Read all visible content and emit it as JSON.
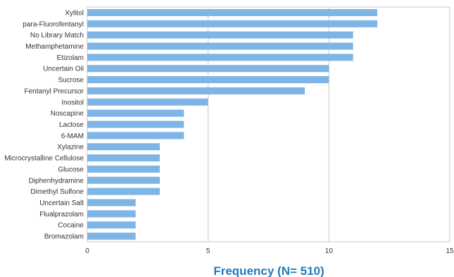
{
  "chart_data": {
    "type": "bar",
    "orientation": "horizontal",
    "title": "",
    "xlabel": "Frequency (N= 510)",
    "ylabel": "",
    "xlim": [
      0,
      15
    ],
    "xticks": [
      "0",
      "5",
      "10",
      "15"
    ],
    "grid": "vertical",
    "categories": [
      "Xylitol",
      "para-Fluorofentanyl",
      "No Library Match",
      "Methamphetamine",
      "Etizolam",
      "Uncertain Oil",
      "Sucrose",
      "Fentanyl Precursor",
      "Inositol",
      "Noscapine",
      "Lactose",
      "6-MAM",
      "Xylazine",
      "Microcrystalline Cellulose",
      "Glucose",
      "Diphenhydramine",
      "Dimethyl Sulfone",
      "Uncertain Salt",
      "Flualprazolam",
      "Cocaine",
      "Bromazolam"
    ],
    "values": [
      12,
      12,
      11,
      11,
      11,
      10,
      10,
      9,
      5,
      4,
      4,
      4,
      3,
      3,
      3,
      3,
      3,
      2,
      2,
      2,
      2
    ],
    "colors": {
      "bar": "#7eb4e6",
      "xlabel": "#1f7bbd",
      "grid": "#c8c8c8"
    }
  }
}
